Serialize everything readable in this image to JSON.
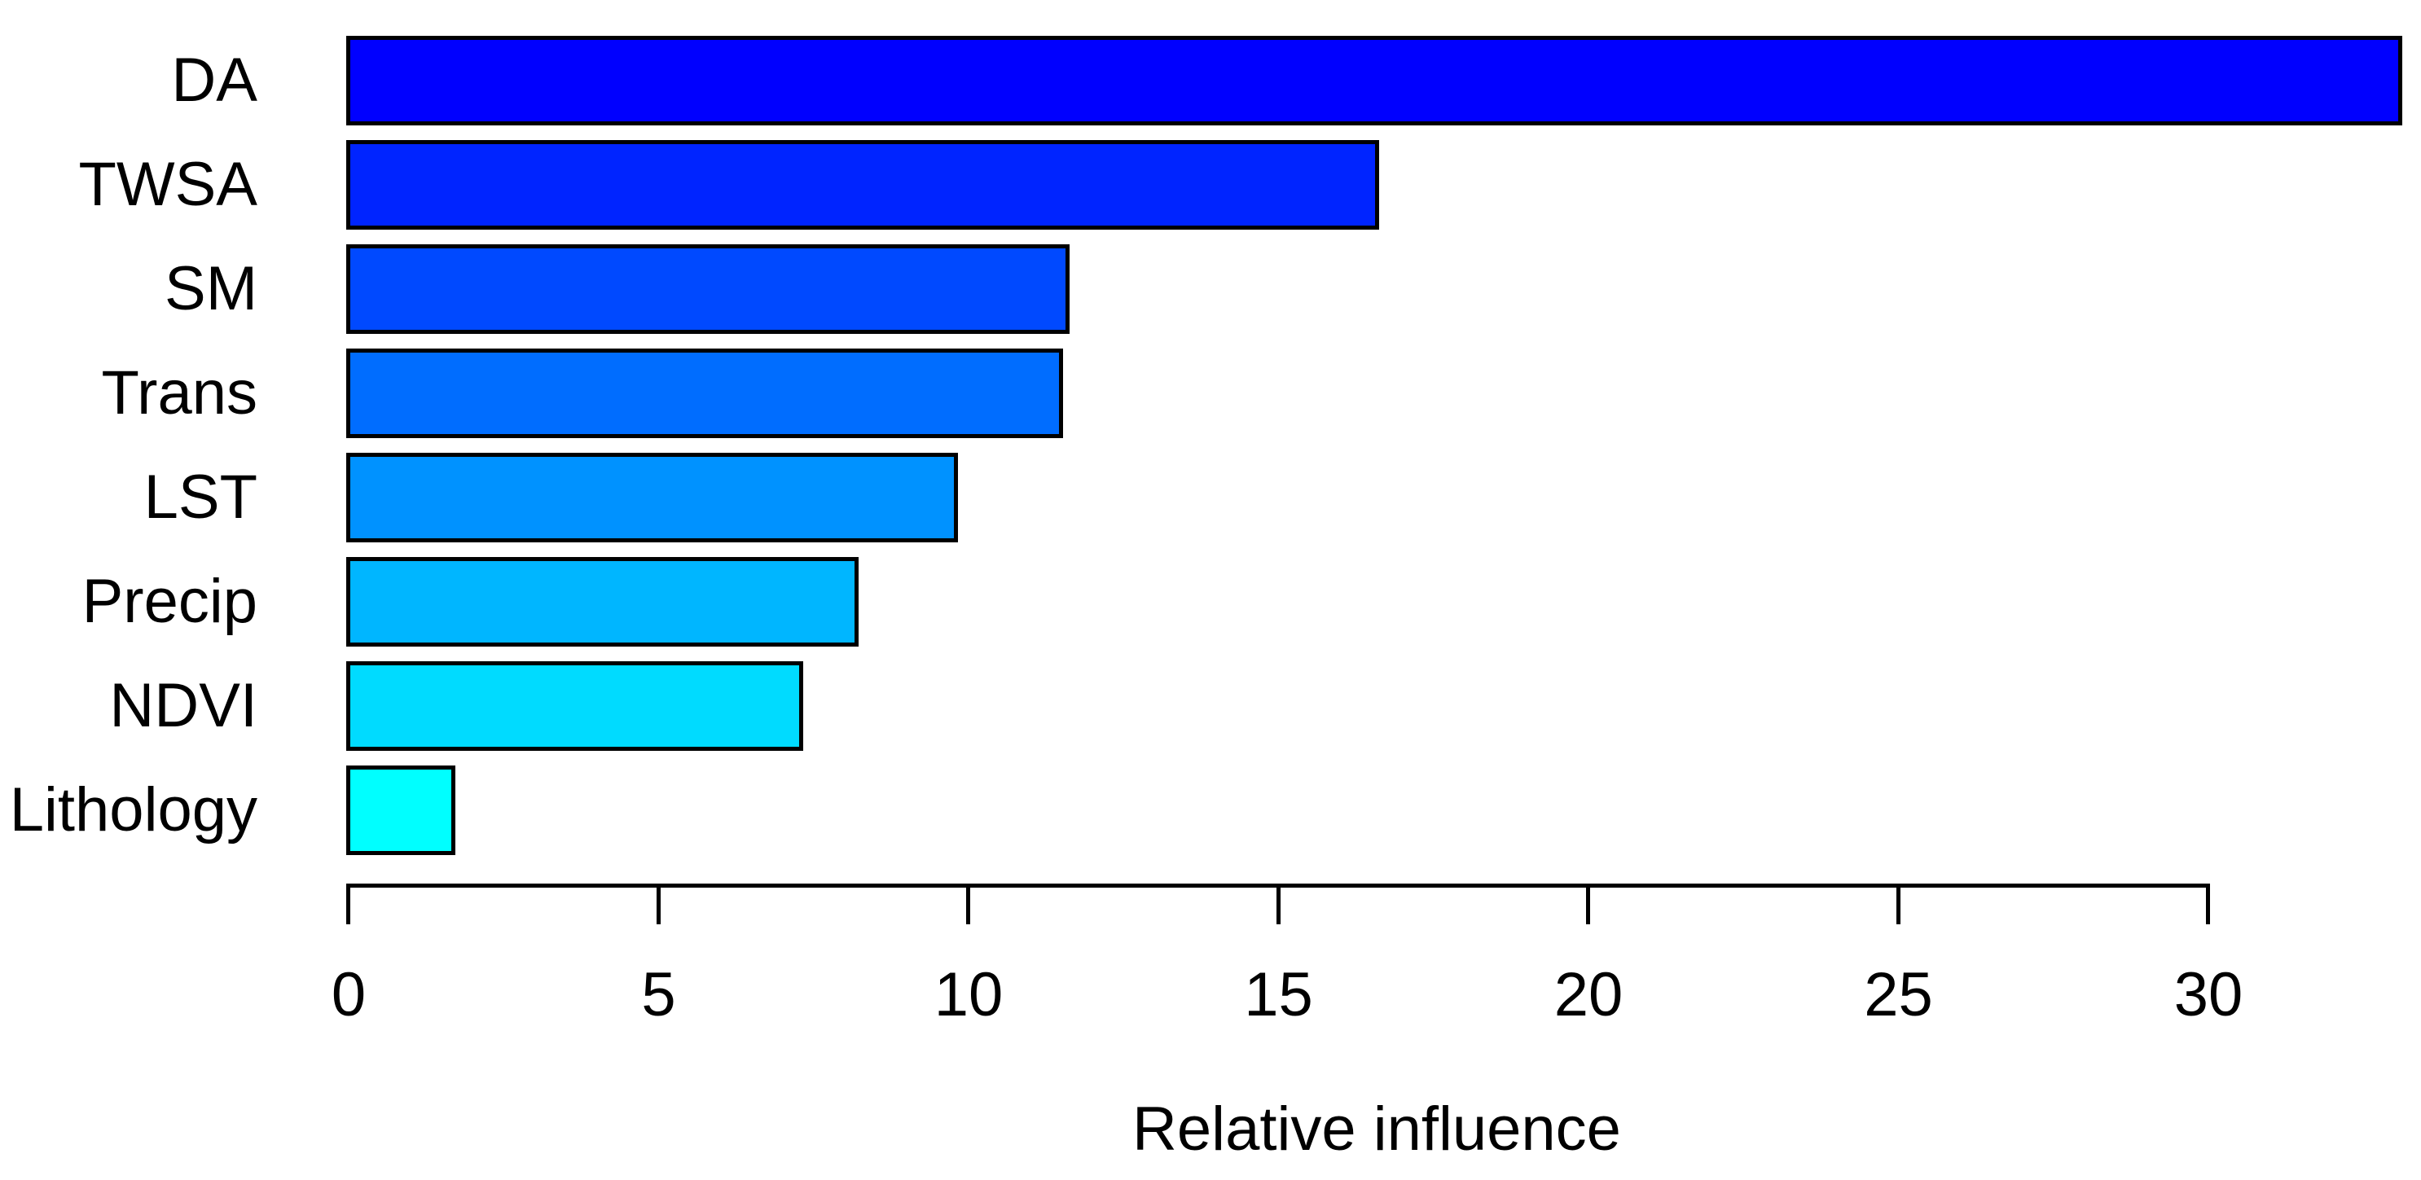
{
  "chart_data": {
    "type": "bar",
    "orientation": "horizontal",
    "title": "",
    "xlabel": "Relative influence",
    "ylabel": "",
    "categories": [
      "DA",
      "TWSA",
      "SM",
      "Trans",
      "LST",
      "Precip",
      "NDVI",
      "Lithology"
    ],
    "values": [
      33.1,
      16.6,
      11.6,
      11.5,
      9.8,
      8.2,
      7.3,
      1.7
    ],
    "bar_colors": [
      "#0000FF",
      "#0024FF",
      "#0049FF",
      "#006DFF",
      "#0092FF",
      "#00B6FF",
      "#00DBFF",
      "#00FFFF"
    ],
    "bar_border_color": "#000000",
    "axis_color": "#000000",
    "text_color": "#000000",
    "background_color": "#FFFFFF",
    "xlim": [
      0,
      33.5
    ],
    "xticks": [
      0,
      5,
      10,
      15,
      20,
      25,
      30
    ],
    "xtick_labels": [
      "0",
      "5",
      "10",
      "15",
      "20",
      "25",
      "30"
    ],
    "grid": false,
    "legend": null
  }
}
